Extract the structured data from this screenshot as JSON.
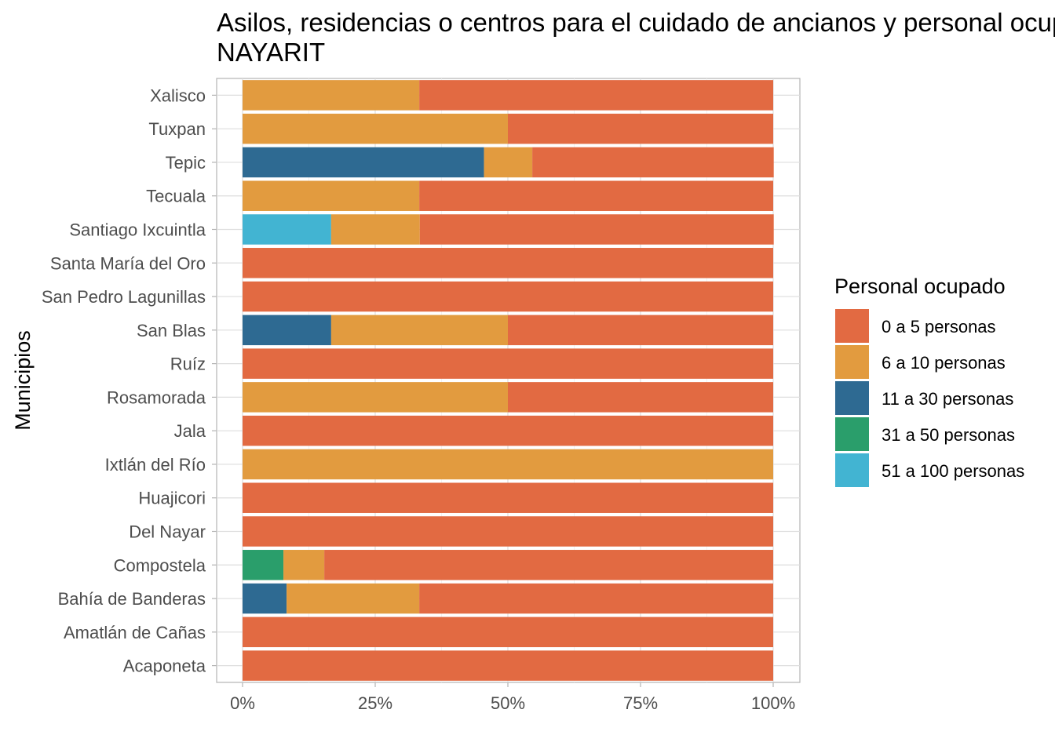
{
  "chart_data": {
    "type": "bar",
    "orientation": "horizontal",
    "stacked": "percent",
    "title": "Asilos, residencias o centros para el cuidado de ancianos y personal ocupado",
    "subtitle": "NAYARIT",
    "xlabel": "",
    "ylabel": "Municipios",
    "xlim": [
      0,
      1
    ],
    "x_ticks": [
      "0%",
      "25%",
      "50%",
      "75%",
      "100%"
    ],
    "x_tick_values": [
      0,
      0.25,
      0.5,
      0.75,
      1
    ],
    "grid": true,
    "legend_position": "right",
    "legend_title": "Personal ocupado",
    "categories": [
      "Xalisco",
      "Tuxpan",
      "Tepic",
      "Tecuala",
      "Santiago Ixcuintla",
      "Santa María del Oro",
      "San Pedro Lagunillas",
      "San Blas",
      "Ruíz",
      "Rosamorada",
      "Jala",
      "Ixtlán del Río",
      "Huajicori",
      "Del Nayar",
      "Compostela",
      "Bahía de Banderas",
      "Amatlán de Cañas",
      "Acaponeta"
    ],
    "series": [
      {
        "name": "0 a 5 personas",
        "color": "#E26A42",
        "values": [
          0.667,
          0.5,
          0.455,
          0.667,
          0.667,
          1,
          1,
          0.5,
          1,
          0.5,
          1,
          0,
          1,
          1,
          0.846,
          0.667,
          1,
          1
        ]
      },
      {
        "name": "6 a 10 personas",
        "color": "#E29B3F",
        "values": [
          0.333,
          0.5,
          0.091,
          0.333,
          0.167,
          0,
          0,
          0.333,
          0,
          0.5,
          0,
          1,
          0,
          0,
          0.077,
          0.25,
          0,
          0
        ]
      },
      {
        "name": "11 a 30 personas",
        "color": "#2E6A92",
        "values": [
          0,
          0,
          0.455,
          0,
          0,
          0,
          0,
          0.167,
          0,
          0,
          0,
          0,
          0,
          0,
          0,
          0.083,
          0,
          0
        ]
      },
      {
        "name": "31 a 50 personas",
        "color": "#2A9E6B",
        "values": [
          0,
          0,
          0,
          0,
          0,
          0,
          0,
          0,
          0,
          0,
          0,
          0,
          0,
          0,
          0.077,
          0,
          0,
          0
        ]
      },
      {
        "name": "51 a 100 personas",
        "color": "#42B4D2",
        "values": [
          0,
          0,
          0,
          0,
          0.167,
          0,
          0,
          0,
          0,
          0,
          0,
          0,
          0,
          0,
          0,
          0,
          0,
          0
        ]
      }
    ],
    "stack_order_left_to_right": [
      "51 a 100 personas",
      "31 a 50 personas",
      "11 a 30 personas",
      "6 a 10 personas",
      "0 a 5 personas"
    ]
  }
}
